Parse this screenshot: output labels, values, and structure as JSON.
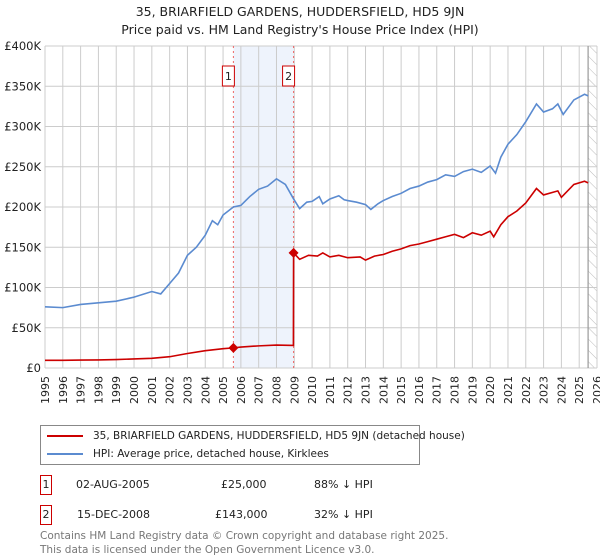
{
  "title": "35, BRIARFIELD GARDENS, HUDDERSFIELD, HD5 9JN",
  "subtitle": "Price paid vs. HM Land Registry's House Price Index (HPI)",
  "legend": {
    "property": "35, BRIARFIELD GARDENS, HUDDERSFIELD, HD5 9JN (detached house)",
    "hpi": "HPI: Average price, detached house, Kirklees"
  },
  "sales": [
    {
      "label": "1",
      "date": "02-AUG-2005",
      "price": "£25,000",
      "hpi_diff": "88% ↓ HPI"
    },
    {
      "label": "2",
      "date": "15-DEC-2008",
      "price": "£143,000",
      "hpi_diff": "32% ↓ HPI"
    }
  ],
  "footer": {
    "line1": "Contains HM Land Registry data © Crown copyright and database right 2025.",
    "line2": "This data is licensed under the Open Government Licence v3.0."
  },
  "colors": {
    "property": "#cc0000",
    "hpi": "#5b8bd0",
    "shade": "#eef3fc"
  },
  "chart_data": {
    "type": "line",
    "xlim": [
      1995,
      2026
    ],
    "ylim": [
      0,
      400000
    ],
    "y_ticks": [
      0,
      50000,
      100000,
      150000,
      200000,
      250000,
      300000,
      350000,
      400000
    ],
    "y_tick_labels": [
      "£0",
      "£50K",
      "£100K",
      "£150K",
      "£200K",
      "£250K",
      "£300K",
      "£350K",
      "£400K"
    ],
    "x_ticks": [
      "1995",
      "1996",
      "1997",
      "1998",
      "1999",
      "2000",
      "2001",
      "2002",
      "2003",
      "2004",
      "2005",
      "2006",
      "2007",
      "2008",
      "2009",
      "2010",
      "2011",
      "2012",
      "2013",
      "2014",
      "2015",
      "2016",
      "2017",
      "2018",
      "2019",
      "2020",
      "2021",
      "2022",
      "2023",
      "2024",
      "2025",
      "2026"
    ],
    "grid": true,
    "forecast_from": 2025.5,
    "sale_points": [
      {
        "label": "1",
        "x": 2005.58,
        "y": 25000
      },
      {
        "label": "2",
        "x": 2008.96,
        "y": 143000
      }
    ],
    "series": [
      {
        "name": "35, BRIARFIELD GARDENS, HUDDERSFIELD, HD5 9JN (detached house)",
        "points": [
          [
            1995,
            9500
          ],
          [
            1996,
            9500
          ],
          [
            1997,
            9800
          ],
          [
            1998,
            10000
          ],
          [
            1999,
            10500
          ],
          [
            2000,
            11300
          ],
          [
            2001,
            12000
          ],
          [
            2002,
            14000
          ],
          [
            2003,
            18000
          ],
          [
            2004,
            21500
          ],
          [
            2005,
            24000
          ],
          [
            2005.58,
            25000
          ],
          [
            2006,
            26000
          ],
          [
            2007,
            27500
          ],
          [
            2008,
            28500
          ],
          [
            2008.95,
            28000
          ],
          [
            2008.96,
            143000
          ],
          [
            2009.3,
            135000
          ],
          [
            2009.8,
            140000
          ],
          [
            2010.3,
            139000
          ],
          [
            2010.6,
            143000
          ],
          [
            2011,
            138000
          ],
          [
            2011.5,
            140000
          ],
          [
            2012,
            137000
          ],
          [
            2012.7,
            138000
          ],
          [
            2013,
            134000
          ],
          [
            2013.5,
            139000
          ],
          [
            2014,
            141000
          ],
          [
            2014.5,
            145000
          ],
          [
            2015,
            148000
          ],
          [
            2015.5,
            152000
          ],
          [
            2016,
            154000
          ],
          [
            2016.5,
            157000
          ],
          [
            2017,
            160000
          ],
          [
            2017.5,
            163000
          ],
          [
            2018,
            166000
          ],
          [
            2018.5,
            162000
          ],
          [
            2019,
            168000
          ],
          [
            2019.5,
            165000
          ],
          [
            2020,
            170000
          ],
          [
            2020.2,
            163000
          ],
          [
            2020.6,
            178000
          ],
          [
            2021,
            188000
          ],
          [
            2021.5,
            195000
          ],
          [
            2022,
            205000
          ],
          [
            2022.6,
            223000
          ],
          [
            2023,
            215000
          ],
          [
            2023.8,
            220000
          ],
          [
            2024,
            212000
          ],
          [
            2024.7,
            228000
          ],
          [
            2025.3,
            232000
          ],
          [
            2025.5,
            230000
          ]
        ]
      },
      {
        "name": "HPI: Average price, detached house, Kirklees",
        "points": [
          [
            1995,
            76000
          ],
          [
            1996,
            75000
          ],
          [
            1997,
            79000
          ],
          [
            1998,
            81000
          ],
          [
            1999,
            83000
          ],
          [
            2000,
            88000
          ],
          [
            2001,
            95000
          ],
          [
            2001.5,
            92000
          ],
          [
            2002,
            105000
          ],
          [
            2002.5,
            118000
          ],
          [
            2003,
            140000
          ],
          [
            2003.5,
            150000
          ],
          [
            2004,
            165000
          ],
          [
            2004.4,
            183000
          ],
          [
            2004.7,
            178000
          ],
          [
            2005,
            190000
          ],
          [
            2005.58,
            200000
          ],
          [
            2006,
            202000
          ],
          [
            2006.5,
            213000
          ],
          [
            2007,
            222000
          ],
          [
            2007.5,
            226000
          ],
          [
            2008,
            235000
          ],
          [
            2008.5,
            228000
          ],
          [
            2008.96,
            210000
          ],
          [
            2009.3,
            198000
          ],
          [
            2009.7,
            206000
          ],
          [
            2010,
            207000
          ],
          [
            2010.4,
            213000
          ],
          [
            2010.6,
            204000
          ],
          [
            2011,
            210000
          ],
          [
            2011.5,
            214000
          ],
          [
            2011.8,
            209000
          ],
          [
            2012,
            208000
          ],
          [
            2012.5,
            206000
          ],
          [
            2013,
            203000
          ],
          [
            2013.3,
            197000
          ],
          [
            2013.7,
            204000
          ],
          [
            2014,
            208000
          ],
          [
            2014.5,
            213000
          ],
          [
            2015,
            217000
          ],
          [
            2015.5,
            223000
          ],
          [
            2016,
            226000
          ],
          [
            2016.5,
            231000
          ],
          [
            2017,
            234000
          ],
          [
            2017.5,
            240000
          ],
          [
            2018,
            238000
          ],
          [
            2018.5,
            244000
          ],
          [
            2019,
            247000
          ],
          [
            2019.5,
            243000
          ],
          [
            2020,
            251000
          ],
          [
            2020.3,
            242000
          ],
          [
            2020.6,
            262000
          ],
          [
            2021,
            278000
          ],
          [
            2021.5,
            290000
          ],
          [
            2022,
            306000
          ],
          [
            2022.6,
            328000
          ],
          [
            2023,
            318000
          ],
          [
            2023.5,
            322000
          ],
          [
            2023.8,
            328000
          ],
          [
            2024.1,
            315000
          ],
          [
            2024.7,
            333000
          ],
          [
            2025.3,
            340000
          ],
          [
            2025.5,
            338000
          ]
        ]
      }
    ]
  }
}
